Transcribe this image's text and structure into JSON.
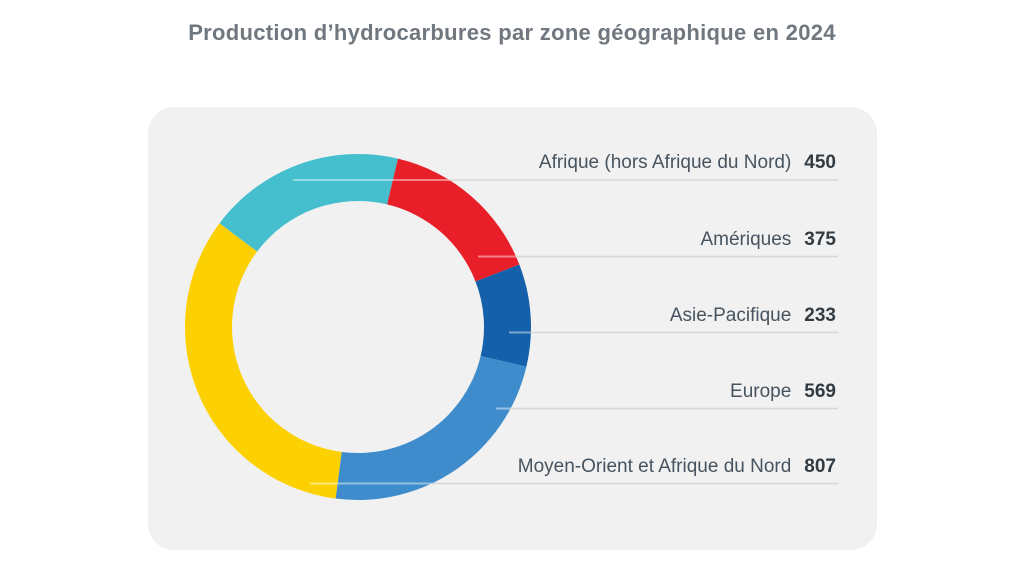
{
  "title": "Production d’hydrocarbures par zone géographique en 2024",
  "chart_data": {
    "type": "pie",
    "subtype": "donut",
    "title": "Production d’hydrocarbures par zone géographique en 2024",
    "categories": [
      "Afrique (hors Afrique du Nord)",
      "Amériques",
      "Asie-Pacifique",
      "Europe",
      "Moyen-Orient et Afrique du Nord"
    ],
    "values": [
      450,
      375,
      233,
      569,
      807
    ],
    "colors": [
      "#45BECE",
      "#E81E28",
      "#1560AA",
      "#3E8CCB",
      "#FDD101"
    ],
    "start_angle_deg": -53.2,
    "inner_radius_ratio": 0.73,
    "legend_position": "right",
    "legend_style": "labels-with-values-and-leader-lines",
    "leader_line_color": "#D7D7D7",
    "card_background": "#F1F1F1",
    "title_color": "#70777E",
    "label_color": "#47545F",
    "value_color": "#333B42"
  }
}
